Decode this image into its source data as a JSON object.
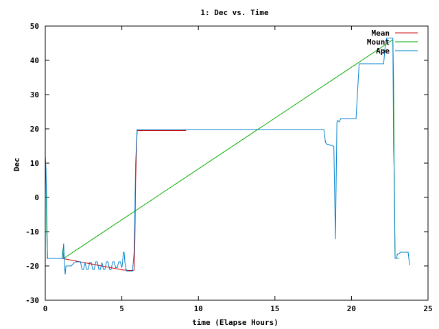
{
  "chart_data": {
    "type": "line",
    "title": "1: Dec vs. Time",
    "xlabel": "time (Elapse Hours)",
    "ylabel": "Dec",
    "xlim": [
      0,
      25
    ],
    "ylim": [
      -30,
      50
    ],
    "x_ticks": [
      "0",
      "5",
      "10",
      "15",
      "20",
      "25"
    ],
    "y_ticks": [
      "50",
      "40",
      "30",
      "20",
      "10",
      "0",
      "-10",
      "-20",
      "-30"
    ],
    "grid": false,
    "legend_position": "top-right",
    "series": [
      {
        "name": "Mean",
        "color": "#cc0000",
        "x": [
          0.1,
          1.1,
          5.1,
          5.2,
          5.3,
          5.4,
          5.5,
          5.6,
          5.7,
          5.8,
          5.85,
          5.9,
          6.0,
          9.2
        ],
        "y": [
          -17.8,
          -17.8,
          -21.2,
          -21.2,
          -21.2,
          -21.3,
          -21.3,
          -21.3,
          -21.3,
          -21.2,
          -13,
          5,
          19.5,
          19.5
        ]
      },
      {
        "name": "Mount",
        "color": "#00aa00",
        "x": [
          0.0,
          0.05,
          0.1,
          0.15,
          0.2,
          1.1,
          1.15,
          1.2,
          22.7,
          22.75,
          22.8,
          22.85,
          22.9,
          23.0,
          23.1
        ],
        "y": [
          12,
          5,
          -10,
          -17.8,
          -17.8,
          -17.8,
          -15,
          -17.8,
          46,
          34,
          -1,
          -17.8,
          -17.8,
          -17.8,
          -17.8
        ]
      },
      {
        "name": "Ape",
        "color": "#0080cc",
        "x": [
          0.0,
          0.05,
          0.1,
          0.15,
          0.2,
          1.1,
          1.15,
          1.2,
          1.25,
          1.3,
          1.35,
          1.4,
          1.5,
          1.7,
          1.9,
          2.0,
          2.3,
          2.4,
          2.5,
          2.6,
          2.7,
          2.8,
          2.9,
          3.0,
          3.1,
          3.2,
          3.3,
          3.4,
          3.5,
          3.6,
          3.7,
          3.8,
          3.9,
          4.0,
          4.1,
          4.2,
          4.3,
          4.4,
          4.5,
          4.6,
          4.7,
          4.8,
          4.9,
          5.0,
          5.05,
          5.1,
          5.15,
          5.2,
          5.3,
          5.5,
          5.7,
          5.8,
          5.85,
          5.9,
          6.0,
          6.1,
          9.5,
          12.0,
          14.0,
          16.0,
          18.0,
          18.1,
          18.2,
          18.3,
          18.4,
          18.5,
          18.6,
          18.7,
          18.8,
          18.85,
          18.9,
          18.95,
          19.0,
          19.05,
          19.1,
          19.2,
          19.3,
          19.5,
          20.3,
          20.4,
          20.5,
          21.8,
          21.9,
          22.0,
          22.1,
          22.2,
          22.3,
          22.6,
          22.65,
          22.7,
          22.75,
          22.8,
          22.85,
          22.9,
          22.95,
          23.0,
          23.1,
          23.2,
          23.3,
          23.7,
          23.8
        ],
        "y": [
          12,
          8,
          -5,
          -17.8,
          -17.8,
          -17.8,
          -16,
          -13.5,
          -19,
          -22.5,
          -20,
          -20,
          -20,
          -20,
          -19,
          -18.8,
          -18.8,
          -21,
          -21,
          -19,
          -21,
          -21,
          -19,
          -19,
          -21,
          -21,
          -18.8,
          -18.8,
          -21,
          -21,
          -19,
          -21,
          -21,
          -18.8,
          -18.8,
          -21,
          -21,
          -18.8,
          -18.8,
          -20.5,
          -20.5,
          -18.8,
          -18.8,
          -20.5,
          -19,
          -16,
          -16,
          -19,
          -21.5,
          -21.5,
          -21.5,
          -16,
          -5,
          10,
          19.8,
          19.8,
          19.8,
          19.8,
          19.8,
          19.8,
          19.8,
          19.8,
          19.8,
          16,
          15.5,
          15.5,
          15.2,
          15.2,
          15,
          14.8,
          2,
          -12.2,
          5,
          22,
          22.5,
          22,
          23,
          23,
          23,
          31,
          39,
          39,
          39,
          39,
          39,
          44,
          46.5,
          46.5,
          46.5,
          46.5,
          15,
          5,
          -17.8,
          -17.8,
          -17.8,
          -16.5,
          -16.5,
          -16,
          -16,
          -16,
          -19.8
        ]
      }
    ]
  }
}
